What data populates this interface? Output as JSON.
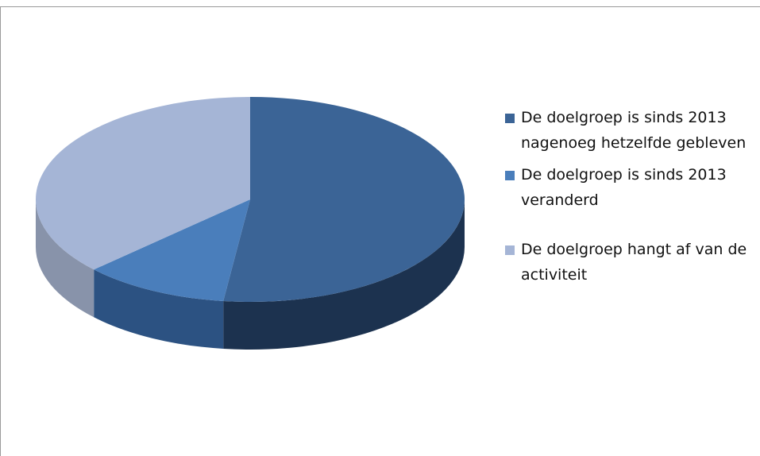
{
  "chart_data": {
    "type": "pie",
    "categories": [
      "De doelgroep is sinds 2013 nagenoeg hetzelfde gebleven",
      "De doelgroep is sinds 2013 veranderd",
      "De doelgroep hangt af van de activiteit"
    ],
    "values": [
      52,
      11,
      37
    ],
    "colors": [
      "#3b6496",
      "#4a7ebb",
      "#a5b5d6"
    ],
    "side_colors": [
      "#1c324f",
      "#2c5282",
      "#8893aa"
    ]
  }
}
